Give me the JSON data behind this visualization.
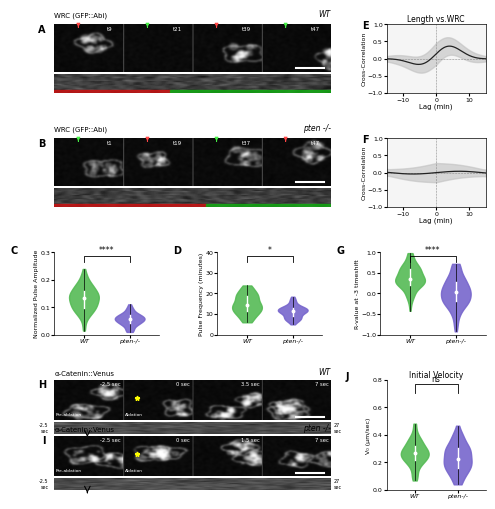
{
  "panel_E": {
    "title": "Length vs.WRC",
    "xlabel": "Lag (min)",
    "ylabel": "Cross-Correlation",
    "xlim": [
      -15,
      15
    ],
    "ylim": [
      -1.0,
      1.0
    ],
    "yticks": [
      -1.0,
      -0.5,
      0.0,
      0.5,
      1.0
    ],
    "xticks": [
      -10,
      0,
      10
    ]
  },
  "panel_F": {
    "xlabel": "Lag (min)",
    "ylabel": "Cross-Correlation",
    "xlim": [
      -15,
      15
    ],
    "ylim": [
      -1.0,
      1.0
    ],
    "yticks": [
      -1.0,
      -0.5,
      0.0,
      0.5,
      1.0
    ],
    "xticks": [
      -10,
      0,
      10
    ]
  },
  "panel_C": {
    "ylabel": "Normalized Pulse Amplitude",
    "ylim": [
      0.0,
      0.3
    ],
    "yticks": [
      0.0,
      0.1,
      0.2,
      0.3
    ],
    "significance": "****"
  },
  "panel_D": {
    "ylabel": "Pulse Frequency (minutes)",
    "ylim": [
      0,
      40
    ],
    "yticks": [
      0,
      10,
      20,
      30,
      40
    ],
    "significance": "*"
  },
  "panel_G": {
    "ylabel": "R-value at -3 timeshift",
    "ylim": [
      -1.0,
      1.0
    ],
    "yticks": [
      -1.0,
      -0.5,
      0.0,
      0.5,
      1.0
    ],
    "significance": "****"
  },
  "panel_J": {
    "title": "Initial Velocity",
    "ylabel": "V0 (um/sec)",
    "ylim": [
      0.0,
      0.8
    ],
    "yticks": [
      0.0,
      0.2,
      0.4,
      0.6,
      0.8
    ],
    "significance": "ns"
  },
  "green_color": "#55bb55",
  "blue_color": "#7766cc",
  "image_bg": "#111111",
  "categories": [
    "WT",
    "pten-/-"
  ]
}
